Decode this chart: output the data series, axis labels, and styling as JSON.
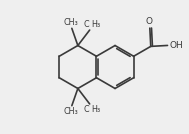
{
  "bg_color": "#efefef",
  "bond_color": "#3a3a3a",
  "text_color": "#3a3a3a",
  "bond_lw": 1.2,
  "figsize": [
    1.89,
    1.34
  ],
  "dpi": 100,
  "font_size": 6.5,
  "small_font": 5.8,
  "xlim": [
    0,
    10
  ],
  "ylim": [
    0,
    7.1
  ]
}
